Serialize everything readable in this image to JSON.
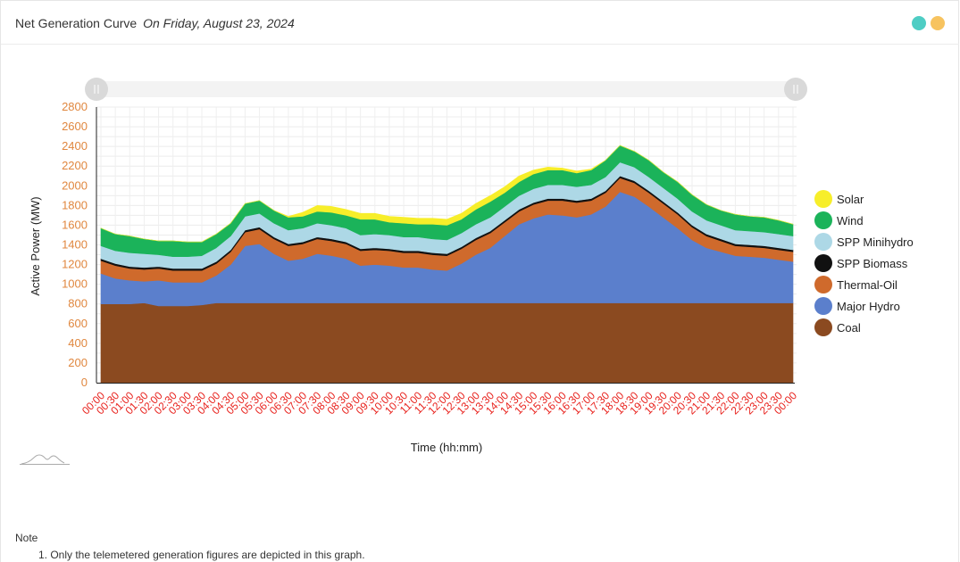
{
  "header": {
    "title": "Net Generation Curve",
    "date_label": "On Friday, August 23, 2024",
    "dot_colors": [
      "#4ecdc4",
      "#f7c35f"
    ]
  },
  "chart_data": {
    "type": "area",
    "stacked": true,
    "xlabel": "Time (hh:mm)",
    "ylabel": "Active Power (MW)",
    "ylim": [
      0,
      2800
    ],
    "yticks": [
      0,
      200,
      400,
      600,
      800,
      1000,
      1200,
      1400,
      1600,
      1800,
      2000,
      2200,
      2400,
      2600,
      2800
    ],
    "grid": true,
    "legend_position": "right",
    "categories": [
      "00:00",
      "00:30",
      "01:00",
      "01:30",
      "02:00",
      "02:30",
      "03:00",
      "03:30",
      "04:00",
      "04:30",
      "05:00",
      "05:30",
      "06:00",
      "06:30",
      "07:00",
      "07:30",
      "08:00",
      "08:30",
      "09:00",
      "09:30",
      "10:00",
      "10:30",
      "11:00",
      "11:30",
      "12:00",
      "12:30",
      "13:00",
      "13:30",
      "14:00",
      "14:30",
      "15:00",
      "15:30",
      "16:00",
      "16:30",
      "17:00",
      "17:30",
      "18:00",
      "18:30",
      "19:00",
      "19:30",
      "20:00",
      "20:30",
      "21:00",
      "21:30",
      "22:00",
      "22:30",
      "23:00",
      "23:30",
      "00:00"
    ],
    "series": [
      {
        "name": "Coal",
        "color": "#8b4a20",
        "values": [
          800,
          800,
          800,
          810,
          780,
          780,
          780,
          790,
          810,
          810,
          810,
          810,
          810,
          810,
          810,
          810,
          810,
          810,
          810,
          810,
          810,
          810,
          810,
          810,
          810,
          810,
          810,
          810,
          810,
          810,
          810,
          810,
          810,
          810,
          810,
          810,
          810,
          810,
          810,
          810,
          810,
          810,
          810,
          810,
          810,
          810,
          810,
          810,
          810
        ]
      },
      {
        "name": "Major Hydro",
        "color": "#5b7fcc",
        "values": [
          310,
          260,
          240,
          220,
          260,
          240,
          240,
          230,
          280,
          390,
          580,
          600,
          500,
          430,
          450,
          500,
          480,
          450,
          380,
          390,
          380,
          360,
          360,
          340,
          330,
          400,
          490,
          560,
          680,
          800,
          860,
          900,
          890,
          870,
          900,
          980,
          1130,
          1080,
          980,
          870,
          760,
          640,
          560,
          520,
          480,
          470,
          460,
          440,
          420
        ]
      },
      {
        "name": "Thermal-Oil",
        "color": "#cf6a2c",
        "values": [
          130,
          130,
          120,
          120,
          120,
          120,
          120,
          120,
          120,
          130,
          140,
          150,
          150,
          150,
          150,
          150,
          150,
          150,
          150,
          150,
          150,
          150,
          150,
          150,
          150,
          150,
          150,
          150,
          140,
          130,
          140,
          140,
          150,
          150,
          140,
          140,
          140,
          140,
          140,
          140,
          140,
          130,
          120,
          110,
          100,
          100,
          100,
          100,
          100
        ]
      },
      {
        "name": "SPP Biomass",
        "color": "#111111",
        "values": [
          20,
          20,
          20,
          20,
          20,
          20,
          20,
          20,
          20,
          20,
          20,
          20,
          20,
          20,
          20,
          20,
          20,
          20,
          20,
          20,
          20,
          20,
          20,
          20,
          20,
          20,
          20,
          20,
          20,
          20,
          20,
          20,
          20,
          20,
          20,
          20,
          20,
          20,
          20,
          20,
          20,
          20,
          20,
          20,
          20,
          20,
          20,
          20,
          20
        ]
      },
      {
        "name": "SPP Minihydro",
        "color": "#add8e6",
        "values": [
          130,
          130,
          140,
          140,
          120,
          120,
          120,
          130,
          140,
          140,
          140,
          140,
          140,
          140,
          140,
          140,
          140,
          140,
          140,
          140,
          140,
          140,
          140,
          140,
          140,
          140,
          140,
          140,
          140,
          140,
          140,
          140,
          140,
          140,
          140,
          140,
          140,
          140,
          140,
          140,
          140,
          140,
          140,
          140,
          140,
          140,
          140,
          140,
          140
        ]
      },
      {
        "name": "Wind",
        "color": "#1bb35a",
        "values": [
          180,
          170,
          170,
          150,
          140,
          160,
          150,
          140,
          140,
          130,
          130,
          130,
          130,
          130,
          120,
          120,
          130,
          130,
          160,
          150,
          130,
          140,
          130,
          150,
          150,
          140,
          150,
          160,
          140,
          140,
          150,
          150,
          150,
          140,
          150,
          170,
          170,
          160,
          170,
          160,
          170,
          170,
          160,
          150,
          160,
          150,
          150,
          140,
          120
        ]
      },
      {
        "name": "Solar",
        "color": "#f7ee2a",
        "values": [
          0,
          0,
          0,
          0,
          0,
          0,
          0,
          0,
          0,
          0,
          0,
          0,
          0,
          10,
          40,
          60,
          60,
          60,
          60,
          60,
          60,
          60,
          60,
          60,
          60,
          60,
          60,
          60,
          60,
          60,
          40,
          30,
          20,
          20,
          10,
          0,
          0,
          0,
          0,
          0,
          0,
          0,
          0,
          0,
          0,
          0,
          0,
          0,
          0
        ]
      }
    ]
  },
  "note": {
    "heading": "Note",
    "items": [
      "1. Only the telemetered generation figures are depicted in this graph."
    ]
  }
}
